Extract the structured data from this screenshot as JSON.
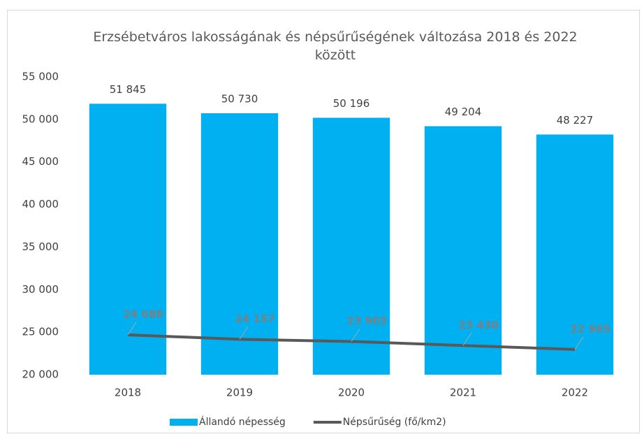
{
  "chart_data": {
    "type": "combo",
    "title": "Erzsébetváros lakosságának és népsűrűségének változása 2018 és 2022 között",
    "categories": [
      "2018",
      "2019",
      "2020",
      "2021",
      "2022"
    ],
    "series": [
      {
        "name": "Állandó népesség",
        "type": "bar",
        "color": "#00b0f0",
        "values": [
          51845,
          50730,
          50196,
          49204,
          48227
        ],
        "value_labels": [
          "51 845",
          "50 730",
          "50 196",
          "49 204",
          "48 227"
        ]
      },
      {
        "name": "Népsűrűség (fő/km2)",
        "type": "line",
        "color": "#595959",
        "values": [
          24688,
          24157,
          23903,
          23430,
          22965
        ],
        "value_labels": [
          "24 688",
          "24 157",
          "23 903",
          "23 430",
          "22 965"
        ]
      }
    ],
    "ylim": [
      20000,
      55000
    ],
    "yticks": [
      {
        "value": 20000,
        "label": "20 000"
      },
      {
        "value": 25000,
        "label": "25 000"
      },
      {
        "value": 30000,
        "label": "30 000"
      },
      {
        "value": 35000,
        "label": "35 000"
      },
      {
        "value": 40000,
        "label": "40 000"
      },
      {
        "value": 45000,
        "label": "45 000"
      },
      {
        "value": 50000,
        "label": "50 000"
      },
      {
        "value": 55000,
        "label": "55 000"
      }
    ],
    "grid": false,
    "legend": "bottom"
  }
}
